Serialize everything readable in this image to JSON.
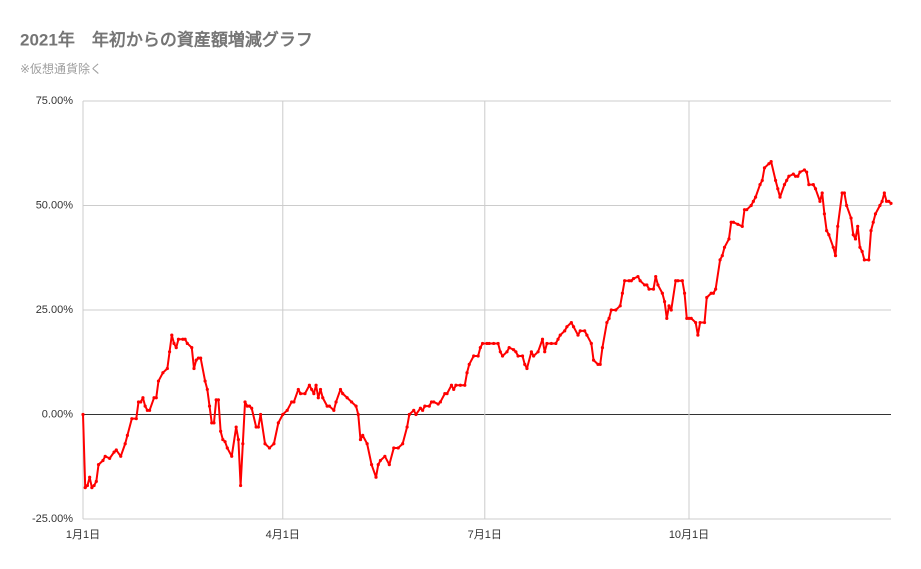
{
  "chart_data": {
    "type": "line",
    "title": "2021年　年初からの資産額増減グラフ",
    "subtitle": "※仮想通貨除く",
    "xlim": [
      1,
      365
    ],
    "xticks": [
      {
        "value": 1,
        "label": "1月1日"
      },
      {
        "value": 91,
        "label": "4月1日"
      },
      {
        "value": 182,
        "label": "7月1日"
      },
      {
        "value": 274,
        "label": "10月1日"
      }
    ],
    "ylim": [
      -25,
      75
    ],
    "yticks": [
      {
        "value": -25,
        "label": "-25.00%"
      },
      {
        "value": 0,
        "label": "0.00%"
      },
      {
        "value": 25,
        "label": "25.00%"
      },
      {
        "value": 50,
        "label": "50.00%"
      },
      {
        "value": 75,
        "label": "75.00%"
      }
    ],
    "grid": true,
    "series": [
      {
        "color": "#ff0000",
        "x": [
          1,
          2,
          3,
          4,
          5,
          6,
          7,
          8,
          10,
          11,
          13,
          15,
          16,
          18,
          20,
          21,
          23,
          25,
          26,
          27,
          28,
          29,
          30,
          31,
          33,
          34,
          35,
          37,
          39,
          40,
          41,
          42,
          43,
          44,
          46,
          47,
          48,
          50,
          51,
          52,
          53,
          54,
          56,
          57,
          58,
          59,
          60,
          61,
          62,
          63,
          64,
          65,
          66,
          68,
          70,
          71,
          72,
          73,
          74,
          75,
          76,
          77,
          79,
          80,
          81,
          83,
          85,
          87,
          89,
          91,
          93,
          95,
          96,
          98,
          99,
          101,
          103,
          104,
          105,
          106,
          107,
          108,
          109,
          111,
          112,
          114,
          115,
          117,
          118,
          120,
          122,
          124,
          125,
          126,
          127,
          129,
          131,
          133,
          134,
          135,
          137,
          139,
          141,
          143,
          145,
          147,
          148,
          150,
          151,
          153,
          154,
          155,
          157,
          158,
          159,
          161,
          162,
          164,
          165,
          167,
          168,
          169,
          171,
          173,
          174,
          175,
          177,
          179,
          180,
          181,
          183,
          184,
          186,
          188,
          189,
          190,
          192,
          193,
          195,
          196,
          197,
          199,
          200,
          201,
          203,
          204,
          206,
          208,
          209,
          210,
          212,
          214,
          215,
          216,
          218,
          219,
          221,
          222,
          224,
          225,
          227,
          228,
          230,
          231,
          233,
          234,
          235,
          237,
          238,
          239,
          241,
          243,
          244,
          245,
          247,
          248,
          249,
          251,
          252,
          254,
          255,
          256,
          258,
          259,
          260,
          262,
          263,
          264,
          265,
          266,
          268,
          269,
          271,
          272,
          273,
          274,
          275,
          277,
          278,
          279,
          281,
          282,
          284,
          285,
          286,
          288,
          289,
          290,
          292,
          293,
          294,
          296,
          298,
          299,
          300,
          302,
          303,
          304,
          306,
          307,
          308,
          310,
          311,
          313,
          314,
          315,
          317,
          318,
          319,
          321,
          322,
          323,
          324,
          326,
          327,
          328,
          330,
          331,
          333,
          334,
          335,
          336,
          337,
          339,
          340,
          341,
          343,
          344,
          345,
          347,
          348,
          349,
          350,
          351,
          352,
          353,
          355,
          356,
          357,
          358,
          360,
          361,
          362,
          363,
          364,
          365
        ],
        "values": [
          0,
          -17.5,
          -17,
          -15,
          -17.5,
          -17,
          -16,
          -12,
          -11,
          -10,
          -10.5,
          -9,
          -8.5,
          -10,
          -7,
          -5,
          -1,
          -1,
          3,
          3,
          4,
          2,
          1,
          1,
          4,
          4,
          8,
          10,
          11,
          15,
          19,
          17,
          16,
          18,
          18,
          18,
          17,
          16,
          11,
          13,
          13.5,
          13.5,
          8,
          6,
          2,
          -2,
          -2,
          3.5,
          3.5,
          -4,
          -6,
          -6.5,
          -8,
          -10,
          -3,
          -6,
          -17,
          -7,
          3,
          2,
          2,
          1.5,
          -3,
          -3,
          0,
          -7,
          -8,
          -7,
          -2,
          0,
          1,
          3,
          3,
          6,
          5,
          5,
          7,
          6,
          5,
          7,
          4,
          6,
          4,
          2,
          2,
          1,
          3,
          6,
          5,
          4,
          3,
          2,
          0,
          -6,
          -5,
          -7,
          -12,
          -15,
          -12,
          -11,
          -10,
          -12,
          -8,
          -8,
          -7,
          -3,
          0,
          1,
          0,
          1.5,
          1,
          2,
          2,
          3,
          3,
          2.5,
          3,
          5,
          5,
          7,
          6,
          7,
          7,
          7,
          10,
          12,
          14,
          14,
          16,
          17,
          17,
          17,
          17,
          17,
          15,
          14,
          15,
          16,
          15.5,
          15,
          14,
          14,
          12,
          11,
          15,
          14,
          15,
          18,
          15,
          17,
          17,
          17,
          18,
          19,
          20,
          21,
          22,
          21,
          19,
          20,
          20,
          19,
          17,
          13,
          12,
          12,
          16,
          22,
          23,
          25,
          25,
          26,
          29,
          32,
          32,
          32,
          32.5,
          33,
          32,
          31,
          31,
          30,
          30,
          33,
          31,
          29,
          27,
          23,
          26,
          25,
          32,
          32,
          32,
          29,
          23,
          23,
          23,
          22,
          19,
          22,
          22,
          28,
          29,
          29,
          30,
          37,
          38,
          40,
          42,
          46,
          46,
          45.5,
          45,
          49,
          49,
          50,
          51,
          52,
          55,
          56,
          59,
          60,
          60.5,
          56,
          54,
          52,
          55,
          56,
          57,
          57.5,
          57,
          57,
          58,
          58.5,
          58,
          55,
          55,
          54,
          51,
          53,
          48,
          44,
          43,
          40,
          38,
          45,
          53,
          53,
          50,
          47,
          43,
          42,
          45,
          40,
          39,
          37,
          37,
          44,
          46,
          48,
          50,
          51,
          53,
          51,
          51,
          50.5
        ]
      }
    ]
  }
}
